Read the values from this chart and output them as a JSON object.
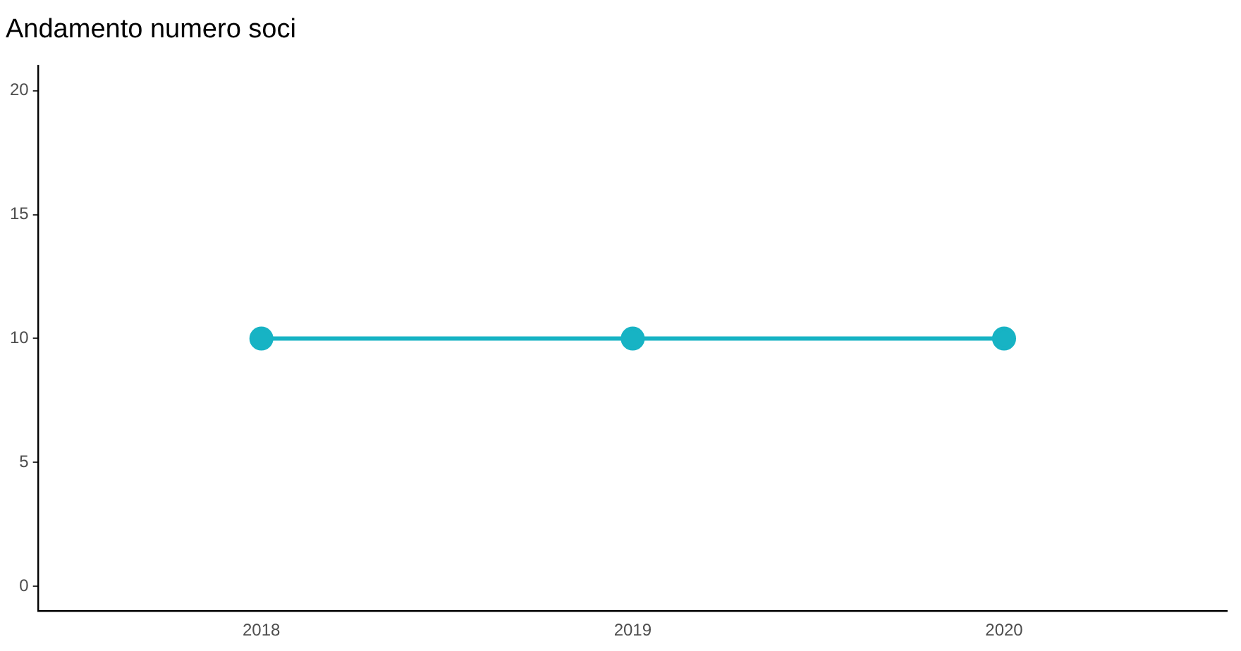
{
  "chart_data": {
    "type": "line",
    "title": "Andamento numero soci",
    "categories": [
      "2018",
      "2019",
      "2020"
    ],
    "series": [
      {
        "color": "#17b3c4",
        "values": [
          10,
          10,
          10
        ]
      }
    ],
    "ylim": [
      -1,
      21
    ],
    "yticks": [
      0,
      5,
      10,
      15,
      20
    ],
    "grid": false,
    "legend": false,
    "marker": "circle",
    "line_style": "solid"
  }
}
